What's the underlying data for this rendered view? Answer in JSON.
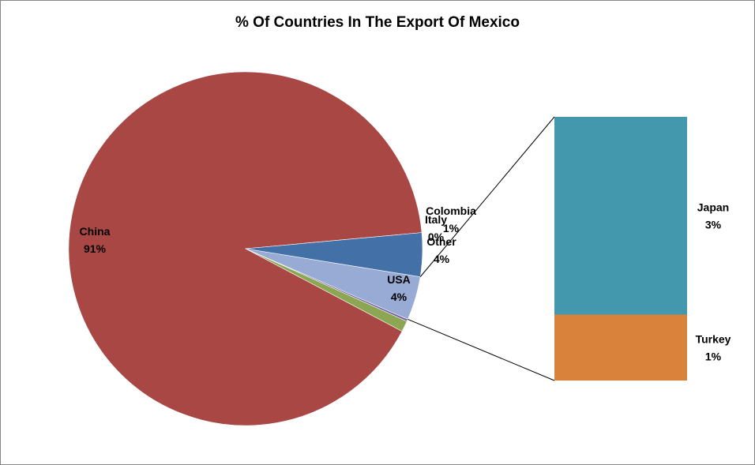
{
  "chart_data": {
    "type": "pie",
    "subtype": "bar-of-pie",
    "title": "% Of Countries In The Export Of Mexico",
    "slices": [
      {
        "name": "China",
        "value": 91,
        "label": "91%",
        "color": "#A94744"
      },
      {
        "name": "Colombia",
        "value": 1,
        "label": "1%",
        "color": "#8CA753"
      },
      {
        "name": "Italy",
        "value": 0.2,
        "label": "0%",
        "color": "#7A5E9B"
      },
      {
        "name": "Other",
        "value": 4,
        "label": "4%",
        "color": "#97ABD4"
      },
      {
        "name": "USA",
        "value": 4,
        "label": "4%",
        "color": "#4470A8"
      }
    ],
    "secondary": {
      "of": "Other",
      "items": [
        {
          "name": "Japan",
          "value": 3,
          "label": "3%",
          "color": "#4398AE"
        },
        {
          "name": "Turkey",
          "value": 1,
          "label": "1%",
          "color": "#D9823C"
        }
      ]
    },
    "legend": "none"
  }
}
